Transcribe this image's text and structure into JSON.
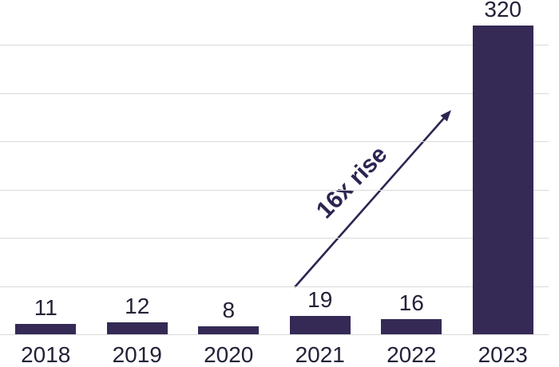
{
  "chart_data": {
    "type": "bar",
    "title": "",
    "xlabel": "",
    "ylabel": "",
    "categories": [
      "2018",
      "2019",
      "2020",
      "2021",
      "2022",
      "2023"
    ],
    "values": [
      11,
      12,
      8,
      19,
      16,
      320
    ],
    "data_labels": [
      "11",
      "12",
      "8",
      "19",
      "16",
      "320"
    ],
    "ylim": [
      0,
      320
    ],
    "gridline_step": 50,
    "gridline_max": 300,
    "grid": true,
    "legend": false,
    "y_axis_tick_labels": false,
    "bar_color": "#342A55",
    "label_color": "#242138",
    "gridline_color": "#D9D9D9",
    "background_color": "#FFFFFF",
    "annotation": {
      "text": "16x rise",
      "color": "#2D2452",
      "rotation_deg": -46
    }
  }
}
